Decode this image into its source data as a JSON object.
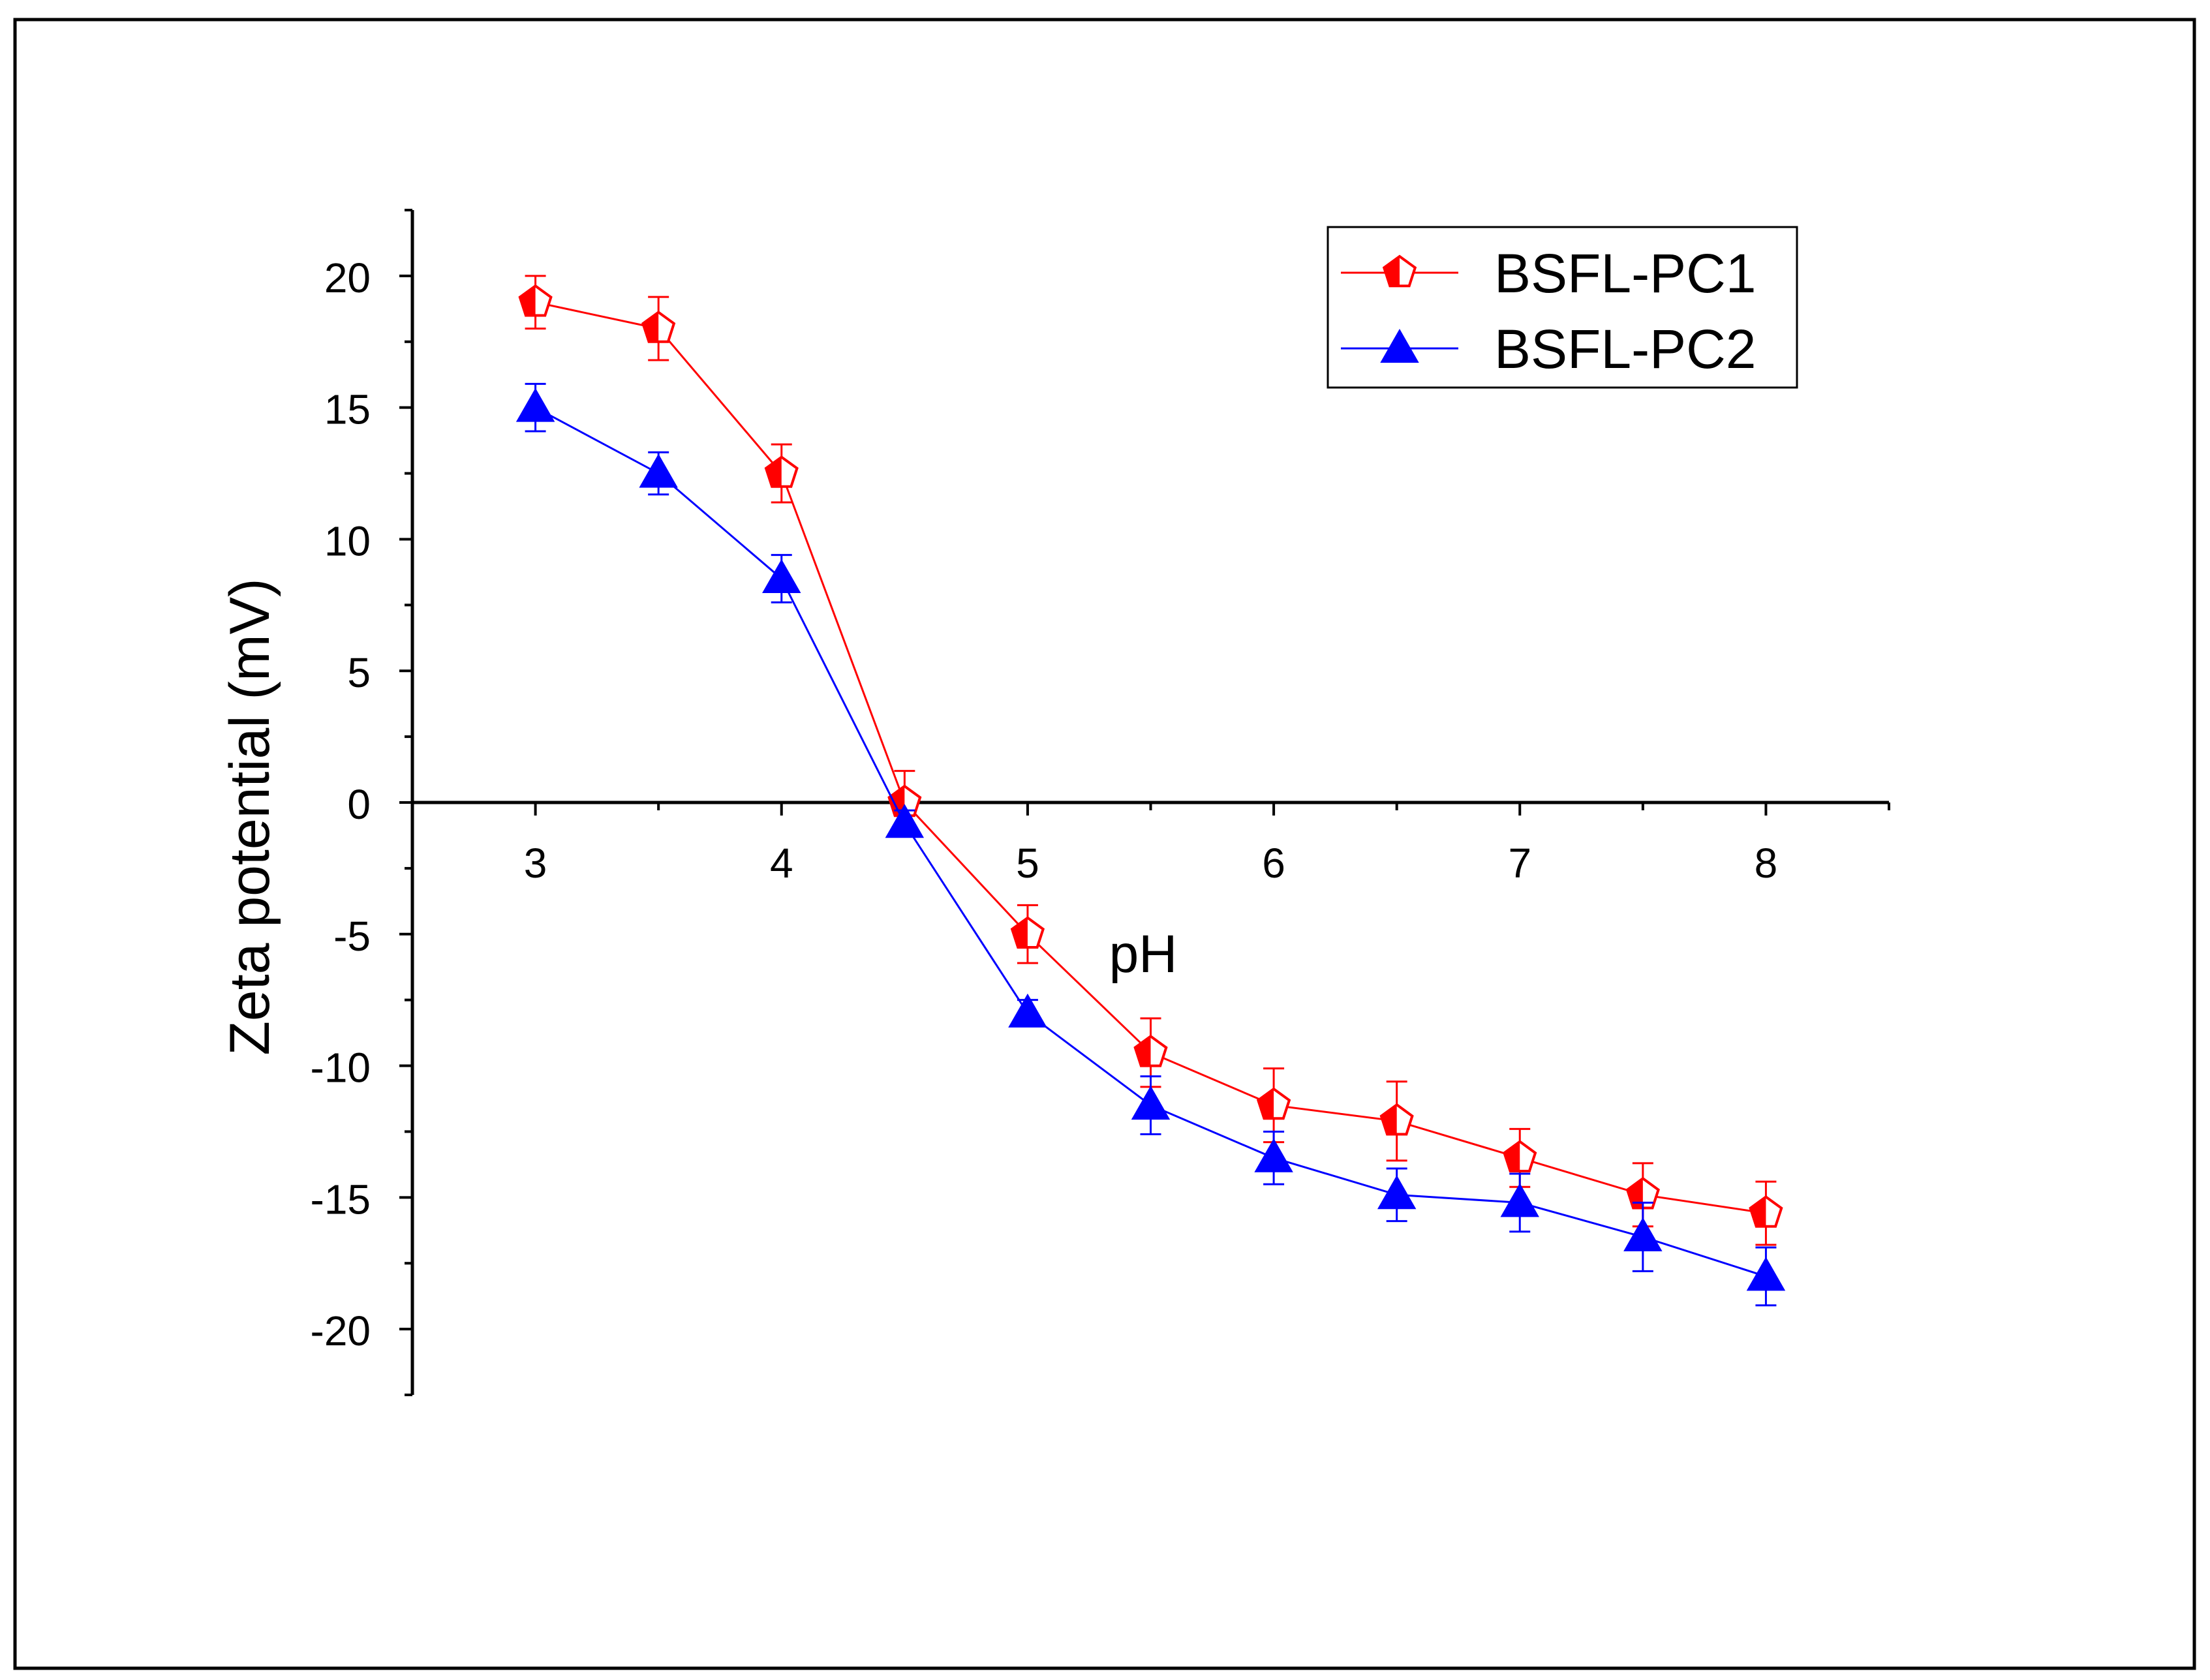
{
  "chart_data": {
    "type": "line",
    "title": "",
    "xlabel": "pH",
    "ylabel": "Zeta potential (mV)",
    "xlim": [
      2.5,
      8.5
    ],
    "ylim": [
      -22.5,
      22.5
    ],
    "xticks": [
      3,
      4,
      5,
      6,
      7,
      8
    ],
    "xtick_labels": [
      "3",
      "4",
      "5",
      "6",
      "7",
      "8"
    ],
    "yticks": [
      20,
      15,
      10,
      5,
      0,
      -5,
      -10,
      -15,
      -20
    ],
    "ytick_labels": [
      "20",
      "15",
      "10",
      "5",
      "0",
      "-5",
      "-10",
      "-15",
      "-20"
    ],
    "legend_position": "top-right",
    "x": [
      3,
      3.5,
      4,
      4.5,
      5,
      5.5,
      6,
      6.5,
      7,
      7.5,
      8
    ],
    "series": [
      {
        "name": "BSFL-PC1",
        "color": "#ff0000",
        "marker": "pentagon-half",
        "values": [
          19.0,
          18.0,
          12.5,
          0.0,
          -5.0,
          -9.5,
          -11.5,
          -12.1,
          -13.5,
          -14.9,
          -15.6
        ],
        "errors": [
          1.0,
          1.2,
          1.1,
          1.2,
          1.1,
          1.3,
          1.4,
          1.5,
          1.1,
          1.2,
          1.2
        ]
      },
      {
        "name": "BSFL-PC2",
        "color": "#0000ff",
        "marker": "triangle",
        "values": [
          15.0,
          12.5,
          8.5,
          -0.8,
          -8.0,
          -11.5,
          -13.5,
          -14.9,
          -15.2,
          -16.5,
          -18.0
        ],
        "errors": [
          0.9,
          0.8,
          0.9,
          0.5,
          0.5,
          1.1,
          1.0,
          1.0,
          1.1,
          1.3,
          1.1
        ]
      }
    ]
  }
}
